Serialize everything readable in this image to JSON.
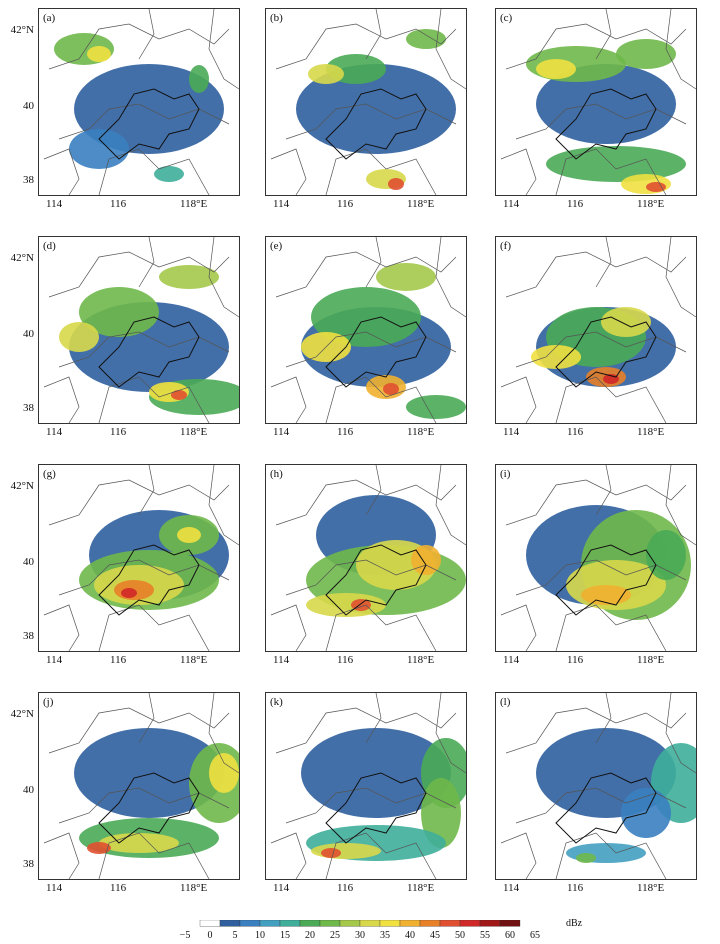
{
  "panels": [
    {
      "label": "(a)"
    },
    {
      "label": "(b)"
    },
    {
      "label": "(c)"
    },
    {
      "label": "(d)"
    },
    {
      "label": "(e)"
    },
    {
      "label": "(f)"
    },
    {
      "label": "(g)"
    },
    {
      "label": "(h)"
    },
    {
      "label": "(i)"
    },
    {
      "label": "(j)"
    },
    {
      "label": "(k)"
    },
    {
      "label": "(l)"
    }
  ],
  "axes": {
    "lat_ticks": [
      "42°N",
      "40",
      "38"
    ],
    "lon_ticks": [
      "114",
      "116",
      "118°E"
    ]
  },
  "colorbar": {
    "unit": "dBz",
    "ticks": [
      "−5",
      "0",
      "5",
      "10",
      "15",
      "20",
      "25",
      "30",
      "35",
      "40",
      "45",
      "50",
      "55",
      "60",
      "65"
    ],
    "colors": [
      "#ffffff",
      "#2f5f9f",
      "#3a7fc0",
      "#44a0c0",
      "#3fae9a",
      "#4aaa55",
      "#6fb84a",
      "#a4c84a",
      "#d8d84a",
      "#f0e040",
      "#f0b030",
      "#e88028",
      "#e05030",
      "#d02828",
      "#a01818",
      "#701010"
    ]
  },
  "map": {
    "lat_range": [
      37.5,
      42.5
    ],
    "lon_range": [
      113.0,
      120.0
    ]
  }
}
